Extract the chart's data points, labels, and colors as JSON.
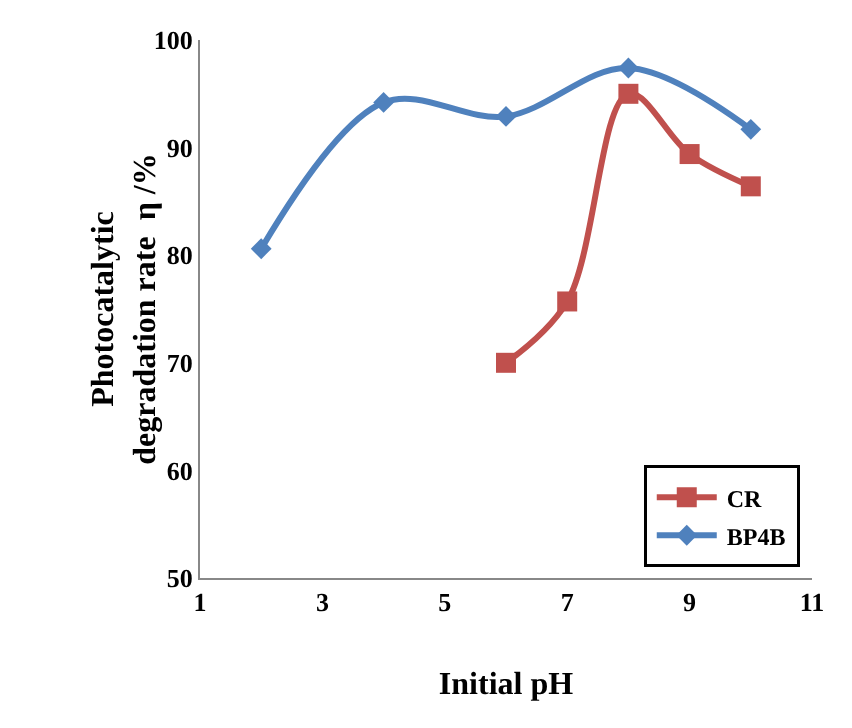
{
  "chart_data": {
    "type": "line",
    "xlabel": "Initial pH",
    "ylabel": "Photocatalytic degradation rate  η /%",
    "xlim": [
      1,
      11
    ],
    "xticks": [
      1,
      3,
      5,
      7,
      9,
      11
    ],
    "ylim": [
      50,
      100
    ],
    "yticks": [
      50,
      60,
      70,
      80,
      90,
      100
    ],
    "grid": false,
    "legend": "bottom right",
    "series": [
      {
        "name": "CR",
        "color": "#c0504d",
        "marker": "square",
        "x": [
          6,
          7,
          8,
          9,
          10
        ],
        "values": [
          70,
          75.7,
          95,
          89.4,
          86.4
        ]
      },
      {
        "name": "BP4B",
        "color": "#4f81bd",
        "marker": "diamond",
        "x": [
          2,
          4,
          6,
          8,
          10
        ],
        "values": [
          80.6,
          94.2,
          92.9,
          97.4,
          91.7
        ]
      }
    ]
  }
}
